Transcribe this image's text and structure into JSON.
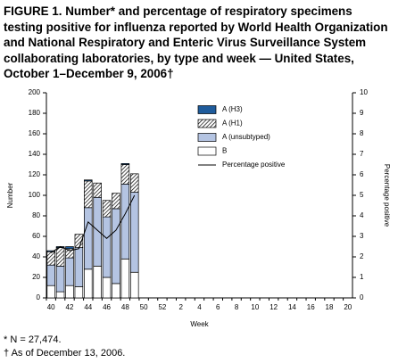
{
  "chart_data": {
    "type": "bar",
    "title": "FIGURE 1. Number* and percentage of respiratory specimens testing positive for influenza reported by World Health Organization and National Respiratory and Enteric Virus Surveillance System collaborating laboratories, by type and week — United States, October 1–December 9, 2006†",
    "x_label": "Week",
    "y_label": "Number",
    "y2_label": "Percentage positive",
    "categories": [
      "40",
      null,
      "42",
      null,
      "44",
      null,
      "46",
      null,
      "48",
      null,
      "50",
      null,
      "52",
      null,
      "2",
      null,
      "4",
      null,
      "6",
      null,
      "8",
      null,
      "10",
      null,
      "12",
      null,
      "14",
      null,
      "16",
      null,
      "18",
      null,
      "20"
    ],
    "series": [
      {
        "name": "B",
        "color": "#ffffff",
        "values": [
          12,
          6,
          12,
          11,
          28,
          31,
          20,
          14,
          38,
          25,
          null,
          null,
          null,
          null,
          null,
          null,
          null,
          null,
          null,
          null,
          null,
          null,
          null,
          null,
          null,
          null,
          null,
          null,
          null,
          null,
          null,
          null,
          null
        ]
      },
      {
        "name": "A (unsubtyped)",
        "color": "#b4c4e2",
        "values": [
          20,
          25,
          27,
          38,
          60,
          67,
          59,
          73,
          73,
          78,
          null,
          null,
          null,
          null,
          null,
          null,
          null,
          null,
          null,
          null,
          null,
          null,
          null,
          null,
          null,
          null,
          null,
          null,
          null,
          null,
          null,
          null,
          null
        ]
      },
      {
        "name": "A (H1)",
        "color": "#000000",
        "pattern": "hatch",
        "values": [
          13,
          18,
          9,
          13,
          26,
          14,
          16,
          15,
          19,
          18,
          null,
          null,
          null,
          null,
          null,
          null,
          null,
          null,
          null,
          null,
          null,
          null,
          null,
          null,
          null,
          null,
          null,
          null,
          null,
          null,
          null,
          null,
          null
        ]
      },
      {
        "name": "A (H3)",
        "color": "#1f5c9c",
        "values": [
          1,
          1,
          2,
          0,
          1,
          0,
          0,
          0,
          1,
          0,
          null,
          null,
          null,
          null,
          null,
          null,
          null,
          null,
          null,
          null,
          null,
          null,
          null,
          null,
          null,
          null,
          null,
          null,
          null,
          null,
          null,
          null,
          null
        ]
      },
      {
        "name": "Percentage positive",
        "type": "line",
        "axis": "y2",
        "color": "#000000",
        "values": [
          2.2,
          2.5,
          2.3,
          2.4,
          3.7,
          3.3,
          2.9,
          3.3,
          4.1,
          5.0,
          null,
          null,
          null,
          null,
          null,
          null,
          null,
          null,
          null,
          null,
          null,
          null,
          null,
          null,
          null,
          null,
          null,
          null,
          null,
          null,
          null,
          null,
          null
        ]
      }
    ],
    "legend_order": [
      3,
      2,
      1,
      0,
      4
    ],
    "ylim": [
      0,
      200
    ],
    "yticks": [
      0,
      20,
      40,
      60,
      80,
      100,
      120,
      140,
      160,
      180,
      200
    ],
    "y2lim": [
      0,
      10
    ],
    "y2ticks": [
      0,
      1,
      2,
      3,
      4,
      5,
      6,
      7,
      8,
      9,
      10
    ],
    "stacked": true,
    "grid": false,
    "legend": "top",
    "footnotes": [
      "* N = 27,474.",
      "† As of December 13, 2006."
    ]
  }
}
